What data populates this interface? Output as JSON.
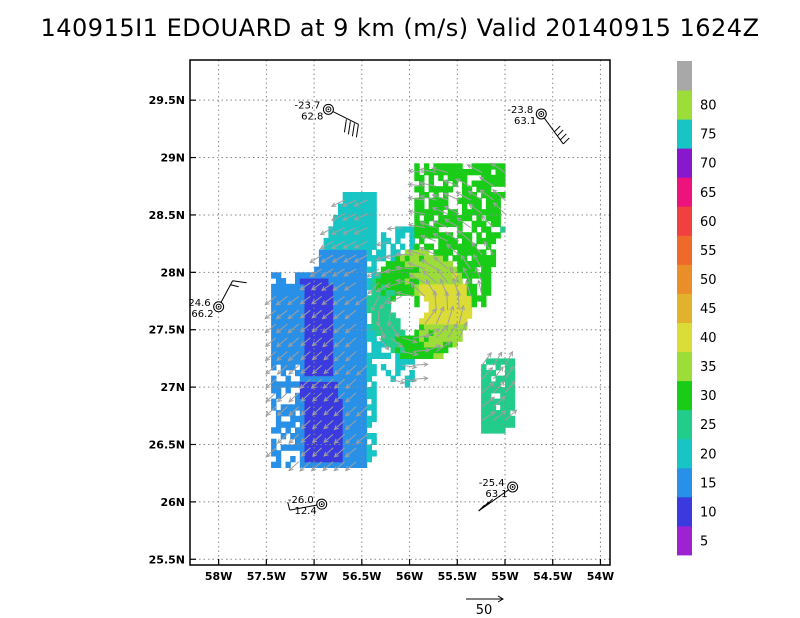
{
  "title": "140915I1 EDOUARD at 9 km (m/s) Valid 20140915 1624Z",
  "map": {
    "lon_range": [
      -58.3,
      -53.9
    ],
    "lat_range": [
      25.45,
      29.85
    ],
    "x_ticks": [
      {
        "lon": -58.0,
        "label": "58W"
      },
      {
        "lon": -57.5,
        "label": "57.5W"
      },
      {
        "lon": -57.0,
        "label": "57W"
      },
      {
        "lon": -56.5,
        "label": "56.5W"
      },
      {
        "lon": -56.0,
        "label": "56W"
      },
      {
        "lon": -55.5,
        "label": "55.5W"
      },
      {
        "lon": -55.0,
        "label": "55W"
      },
      {
        "lon": -54.5,
        "label": "54.5W"
      },
      {
        "lon": -54.0,
        "label": "54W"
      }
    ],
    "y_ticks": [
      {
        "lat": 25.5,
        "label": "25.5N"
      },
      {
        "lat": 26.0,
        "label": "26N"
      },
      {
        "lat": 26.5,
        "label": "26.5N"
      },
      {
        "lat": 27.0,
        "label": "27N"
      },
      {
        "lat": 27.5,
        "label": "27.5N"
      },
      {
        "lat": 28.0,
        "label": "28N"
      },
      {
        "lat": 28.5,
        "label": "28.5N"
      },
      {
        "lat": 29.0,
        "label": "29N"
      },
      {
        "lat": 29.5,
        "label": "29.5N"
      }
    ],
    "grid": "dotted",
    "storm_center": {
      "lon": -56.0,
      "lat": 27.65
    }
  },
  "legend": {
    "placement": "right",
    "bins": [
      {
        "label": "5",
        "color": "#9c22d2"
      },
      {
        "label": "10",
        "color": "#3a3adf"
      },
      {
        "label": "15",
        "color": "#2890e6"
      },
      {
        "label": "20",
        "color": "#18c5c5"
      },
      {
        "label": "25",
        "color": "#22cc8a"
      },
      {
        "label": "30",
        "color": "#18cc18"
      },
      {
        "label": "35",
        "color": "#9cdd3a"
      },
      {
        "label": "40",
        "color": "#dcdc38"
      },
      {
        "label": "45",
        "color": "#e2b22c"
      },
      {
        "label": "50",
        "color": "#ea8e2a"
      },
      {
        "label": "55",
        "color": "#ee6a2a"
      },
      {
        "label": "60",
        "color": "#f04040"
      },
      {
        "label": "65",
        "color": "#ec147c"
      },
      {
        "label": "70",
        "color": "#8818cc"
      },
      {
        "label": "75",
        "color": "#18c5c5"
      },
      {
        "label": "80",
        "color": "#9cdd3a"
      },
      {
        "label": "",
        "color": "#a8a8a8"
      }
    ]
  },
  "stations": [
    {
      "id": "stn-nw",
      "lon": -56.85,
      "lat": 29.42,
      "top": "-23.7",
      "bottom": "62.8"
    },
    {
      "id": "stn-ne",
      "lon": -54.62,
      "lat": 29.38,
      "top": "-23.8",
      "bottom": "63.1"
    },
    {
      "id": "stn-w",
      "lon": -58.0,
      "lat": 27.7,
      "top": "24.6",
      "bottom": "66.2"
    },
    {
      "id": "stn-sw",
      "lon": -56.92,
      "lat": 25.98,
      "top": "-26.0",
      "bottom": "12.4"
    },
    {
      "id": "stn-se",
      "lon": -54.92,
      "lat": 26.13,
      "top": "-25.4",
      "bottom": "63.1"
    }
  ],
  "scale_arrow": {
    "label": "50"
  },
  "colors": {
    "axis": "#000000",
    "grid": "#8a8a8a",
    "vector": "#a0a0a0"
  }
}
